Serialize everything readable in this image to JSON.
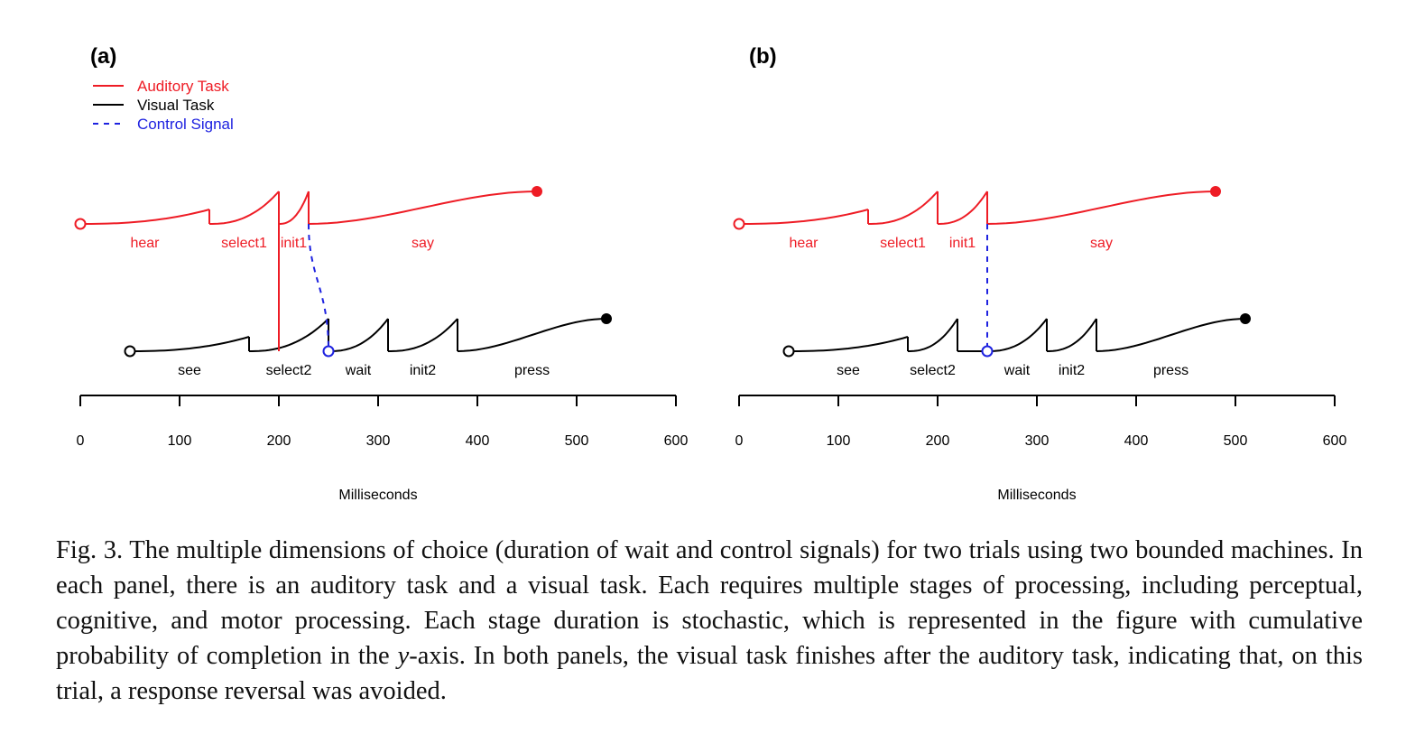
{
  "legend": {
    "items": [
      {
        "label": "Auditory Task",
        "color": "#ee1c25",
        "style": "solid"
      },
      {
        "label": "Visual Task",
        "color": "#000000",
        "style": "solid"
      },
      {
        "label": "Control Signal",
        "color": "#1e22e0",
        "style": "dashed"
      }
    ]
  },
  "axis_label": "Milliseconds",
  "colors": {
    "auditory": "#ee1c25",
    "visual": "#000000",
    "control": "#1e22e0"
  },
  "chart_data": [
    {
      "type": "line",
      "panel": "(a)",
      "xlabel": "Milliseconds",
      "xlim": [
        0,
        600
      ],
      "xticks": [
        0,
        100,
        200,
        300,
        400,
        500,
        600
      ],
      "auditory": {
        "name": "Auditory Task",
        "start": 0,
        "end": 460,
        "stages": [
          {
            "label": "hear",
            "start": 0,
            "end": 130
          },
          {
            "label": "select1",
            "start": 130,
            "end": 200
          },
          {
            "label": "init1",
            "start": 200,
            "end": 230
          },
          {
            "label": "say",
            "start": 230,
            "end": 460
          }
        ]
      },
      "visual": {
        "name": "Visual Task",
        "start": 50,
        "end": 530,
        "stages": [
          {
            "label": "see",
            "start": 50,
            "end": 170
          },
          {
            "label": "select2",
            "start": 170,
            "end": 250
          },
          {
            "label": "wait",
            "start": 250,
            "end": 310
          },
          {
            "label": "init2",
            "start": 310,
            "end": 380
          },
          {
            "label": "press",
            "start": 380,
            "end": 530
          }
        ]
      },
      "links": [
        {
          "type": "solid",
          "from": "auditory",
          "at": 200,
          "to_at": 200
        },
        {
          "type": "control",
          "from": "auditory",
          "at": 230,
          "to_at": 250
        }
      ]
    },
    {
      "type": "line",
      "panel": "(b)",
      "xlabel": "Milliseconds",
      "xlim": [
        0,
        600
      ],
      "xticks": [
        0,
        100,
        200,
        300,
        400,
        500,
        600
      ],
      "auditory": {
        "name": "Auditory Task",
        "start": 0,
        "end": 480,
        "stages": [
          {
            "label": "hear",
            "start": 0,
            "end": 130
          },
          {
            "label": "select1",
            "start": 130,
            "end": 200
          },
          {
            "label": "init1",
            "start": 200,
            "end": 250
          },
          {
            "label": "say",
            "start": 250,
            "end": 480
          }
        ]
      },
      "visual": {
        "name": "Visual Task",
        "start": 50,
        "end": 510,
        "stages": [
          {
            "label": "see",
            "start": 50,
            "end": 170
          },
          {
            "label": "select2",
            "start": 170,
            "end": 220
          },
          {
            "label": "wait",
            "start": 250,
            "end": 310
          },
          {
            "label": "init2",
            "start": 310,
            "end": 360
          },
          {
            "label": "press",
            "start": 360,
            "end": 510
          }
        ]
      },
      "links": [
        {
          "type": "control",
          "from": "auditory",
          "at": 250,
          "to_at": 250
        }
      ]
    }
  ],
  "caption": {
    "pre": "Fig. 3. The multiple dimensions of choice (duration of wait and control signals) for two trials using two bounded machines. In each panel, there is an auditory task and a visual task. Each requires multiple stages of processing, including perceptual, cognitive, and motor processing. Each stage duration is stochastic, which is represented in the figure with cumulative probability of completion in the ",
    "italic": "y",
    "post": "-axis. In both panels, the visual task finishes after the auditory task, indicating that, on this trial, a response reversal was avoided."
  }
}
